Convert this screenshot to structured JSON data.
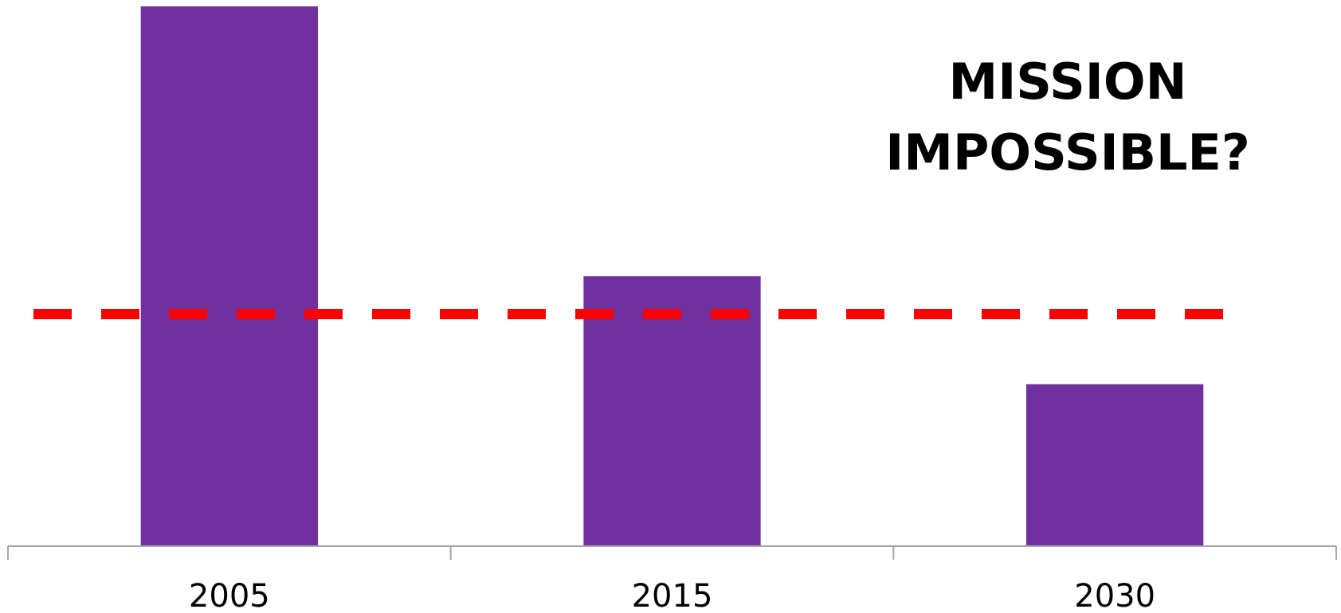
{
  "chart_data": {
    "type": "bar",
    "categories": [
      "2005",
      "2015",
      "2030"
    ],
    "values": [
      100,
      50,
      30
    ],
    "ylim": [
      0,
      100
    ],
    "reference_line": {
      "value": 43,
      "style": "dashed",
      "color": "#ff0000"
    },
    "annotation": [
      "MISSION",
      "IMPOSSIBLE?"
    ],
    "bar_color": "#7030a0",
    "axis_color": "#a6a6a6",
    "title": "",
    "xlabel": "",
    "ylabel": "",
    "grid": false,
    "legend": "none"
  }
}
